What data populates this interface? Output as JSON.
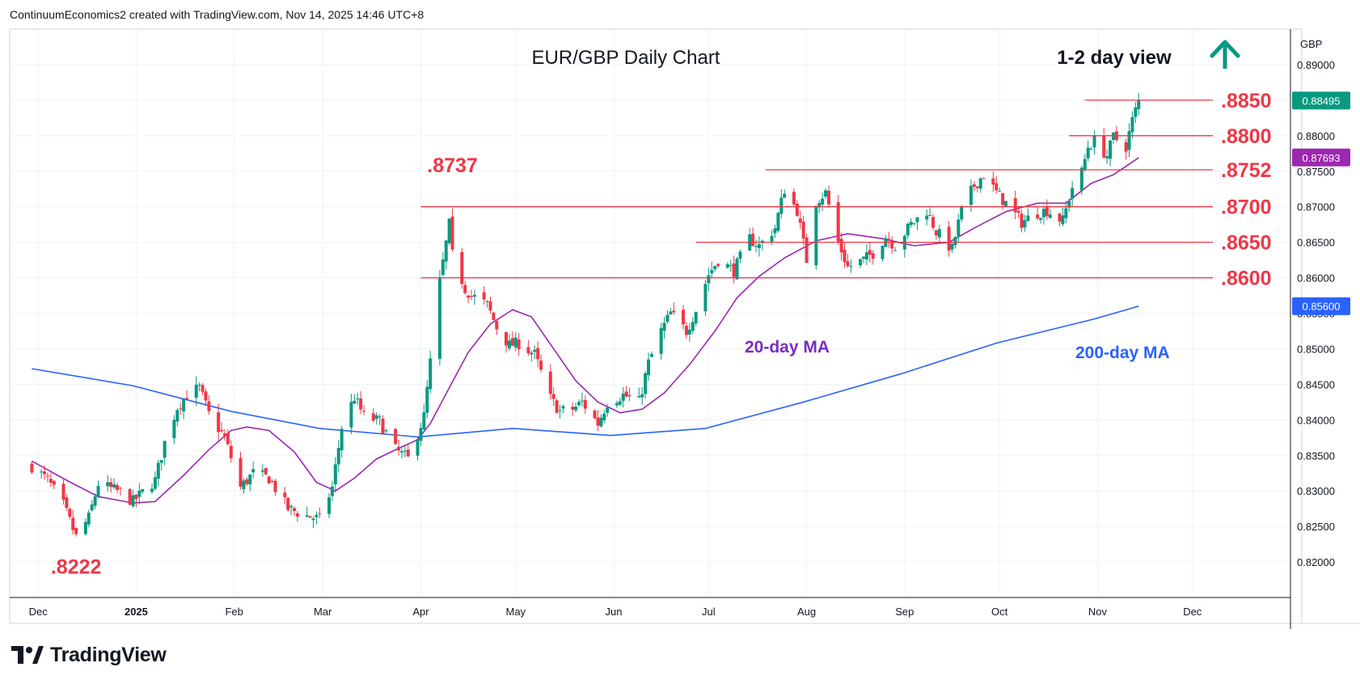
{
  "attribution": "ContinuumEconomics2 created with TradingView.com, Nov 14, 2025 14:46 UTC+8",
  "brand": "TradingView",
  "chart_data": {
    "type": "candlestick",
    "title": "EUR/GBP Daily Chart",
    "view_label": "1-2 day view",
    "view_direction": "up",
    "currency": "GBP",
    "ylim": [
      0.815,
      0.895
    ],
    "y_ticks": [
      "0.89000",
      "0.88500",
      "0.88000",
      "0.87500",
      "0.87000",
      "0.86500",
      "0.86000",
      "0.85500",
      "0.85000",
      "0.84500",
      "0.84000",
      "0.83500",
      "0.83000",
      "0.82500",
      "0.82000"
    ],
    "y_tick_values": [
      0.89,
      0.885,
      0.88,
      0.875,
      0.87,
      0.865,
      0.86,
      0.855,
      0.85,
      0.845,
      0.84,
      0.835,
      0.83,
      0.825,
      0.82
    ],
    "x_ticks": [
      {
        "label": "Dec",
        "date": "2024-12-01",
        "bold": false
      },
      {
        "label": "2025",
        "date": "2025-01-01",
        "bold": true
      },
      {
        "label": "Feb",
        "date": "2025-02-01",
        "bold": false
      },
      {
        "label": "Mar",
        "date": "2025-03-01",
        "bold": false
      },
      {
        "label": "Apr",
        "date": "2025-04-01",
        "bold": false
      },
      {
        "label": "May",
        "date": "2025-05-01",
        "bold": false
      },
      {
        "label": "Jun",
        "date": "2025-06-01",
        "bold": false
      },
      {
        "label": "Jul",
        "date": "2025-07-01",
        "bold": false
      },
      {
        "label": "Aug",
        "date": "2025-08-01",
        "bold": false
      },
      {
        "label": "Sep",
        "date": "2025-09-01",
        "bold": false
      },
      {
        "label": "Oct",
        "date": "2025-10-01",
        "bold": false
      },
      {
        "label": "Nov",
        "date": "2025-11-01",
        "bold": false
      },
      {
        "label": "Dec",
        "date": "2025-12-01",
        "bold": false
      }
    ],
    "price_badges": [
      {
        "label": "0.88495",
        "value": 0.88495,
        "color": "#089981"
      },
      {
        "label": "0.87693",
        "value": 0.87693,
        "color": "#9c27b0"
      },
      {
        "label": "0.85600",
        "value": 0.856,
        "color": "#2962ff"
      }
    ],
    "levels": [
      {
        "label": ".8850",
        "value": 0.885,
        "from": "2025-10-28"
      },
      {
        "label": ".8800",
        "value": 0.88,
        "from": "2025-10-23"
      },
      {
        "label": ".8752",
        "value": 0.8752,
        "from": "2025-07-19"
      },
      {
        "label": ".8700",
        "value": 0.87,
        "from": "2025-04-01"
      },
      {
        "label": ".8650",
        "value": 0.865,
        "from": "2025-06-27"
      },
      {
        "label": ".8600",
        "value": 0.86,
        "from": "2025-04-01"
      }
    ],
    "annotations": [
      {
        "label": ".8737",
        "date": "2025-04-11",
        "value": 0.8737,
        "place": "above"
      },
      {
        "label": ".8222",
        "date": "2024-12-13",
        "value": 0.8222,
        "place": "below"
      }
    ],
    "ma_labels": [
      {
        "label": "20-day MA",
        "color": "#7b2cbf"
      },
      {
        "label": "200-day MA",
        "color": "#2962ff"
      }
    ],
    "colors": {
      "up": "#089981",
      "down": "#f23645",
      "level": "#f23645",
      "ma20": "#9c27b0",
      "ma200": "#2962ff",
      "grid": "#f0f3fa",
      "text": "#131722"
    },
    "ma20": [
      [
        "2024-11-29",
        0.8342
      ],
      [
        "2024-12-10",
        0.8315
      ],
      [
        "2024-12-20",
        0.8292
      ],
      [
        "2024-12-31",
        0.8283
      ],
      [
        "2025-01-07",
        0.8285
      ],
      [
        "2025-01-16",
        0.8322
      ],
      [
        "2025-01-24",
        0.8358
      ],
      [
        "2025-01-31",
        0.8385
      ],
      [
        "2025-02-05",
        0.839
      ],
      [
        "2025-02-12",
        0.8385
      ],
      [
        "2025-02-20",
        0.8355
      ],
      [
        "2025-02-27",
        0.8312
      ],
      [
        "2025-03-05",
        0.83
      ],
      [
        "2025-03-11",
        0.8318
      ],
      [
        "2025-03-18",
        0.8345
      ],
      [
        "2025-03-25",
        0.836
      ],
      [
        "2025-03-31",
        0.8372
      ],
      [
        "2025-04-04",
        0.8395
      ],
      [
        "2025-04-10",
        0.8445
      ],
      [
        "2025-04-16",
        0.8495
      ],
      [
        "2025-04-23",
        0.8535
      ],
      [
        "2025-04-30",
        0.8555
      ],
      [
        "2025-05-06",
        0.8545
      ],
      [
        "2025-05-13",
        0.85
      ],
      [
        "2025-05-20",
        0.8455
      ],
      [
        "2025-05-27",
        0.8425
      ],
      [
        "2025-06-03",
        0.841
      ],
      [
        "2025-06-10",
        0.8415
      ],
      [
        "2025-06-17",
        0.8438
      ],
      [
        "2025-06-25",
        0.8478
      ],
      [
        "2025-07-03",
        0.8525
      ],
      [
        "2025-07-10",
        0.8572
      ],
      [
        "2025-07-17",
        0.8602
      ],
      [
        "2025-07-25",
        0.8628
      ],
      [
        "2025-08-04",
        0.8652
      ],
      [
        "2025-08-14",
        0.8662
      ],
      [
        "2025-08-25",
        0.8655
      ],
      [
        "2025-09-04",
        0.8645
      ],
      [
        "2025-09-15",
        0.865
      ],
      [
        "2025-09-23",
        0.867
      ],
      [
        "2025-10-03",
        0.8693
      ],
      [
        "2025-10-13",
        0.8705
      ],
      [
        "2025-10-22",
        0.8705
      ],
      [
        "2025-10-30",
        0.8733
      ],
      [
        "2025-11-06",
        0.8745
      ],
      [
        "2025-11-14",
        0.8769
      ]
    ],
    "ma200": [
      [
        "2024-11-29",
        0.8472
      ],
      [
        "2024-12-31",
        0.8448
      ],
      [
        "2025-01-31",
        0.8412
      ],
      [
        "2025-02-28",
        0.8388
      ],
      [
        "2025-03-31",
        0.8376
      ],
      [
        "2025-04-30",
        0.8388
      ],
      [
        "2025-05-31",
        0.8378
      ],
      [
        "2025-06-30",
        0.8388
      ],
      [
        "2025-07-31",
        0.8425
      ],
      [
        "2025-08-31",
        0.8465
      ],
      [
        "2025-09-30",
        0.8508
      ],
      [
        "2025-10-31",
        0.8542
      ],
      [
        "2025-11-14",
        0.856
      ]
    ],
    "closes": [
      [
        "2024-11-29",
        0.8335
      ],
      [
        "2024-12-04",
        0.8315
      ],
      [
        "2024-12-09",
        0.828
      ],
      [
        "2024-12-13",
        0.8235
      ],
      [
        "2024-12-17",
        0.8262
      ],
      [
        "2024-12-20",
        0.831
      ],
      [
        "2024-12-27",
        0.8298
      ],
      [
        "2024-12-31",
        0.8285
      ],
      [
        "2025-01-07",
        0.8315
      ],
      [
        "2025-01-10",
        0.8368
      ],
      [
        "2025-01-14",
        0.8418
      ],
      [
        "2025-01-17",
        0.8435
      ],
      [
        "2025-01-21",
        0.8445
      ],
      [
        "2025-01-24",
        0.8408
      ],
      [
        "2025-01-29",
        0.8375
      ],
      [
        "2025-02-03",
        0.8305
      ],
      [
        "2025-02-07",
        0.8325
      ],
      [
        "2025-02-12",
        0.8318
      ],
      [
        "2025-02-18",
        0.8275
      ],
      [
        "2025-02-24",
        0.8265
      ],
      [
        "2025-02-28",
        0.826
      ],
      [
        "2025-03-04",
        0.8305
      ],
      [
        "2025-03-07",
        0.839
      ],
      [
        "2025-03-11",
        0.8432
      ],
      [
        "2025-03-14",
        0.8405
      ],
      [
        "2025-03-19",
        0.8398
      ],
      [
        "2025-03-24",
        0.8358
      ],
      [
        "2025-03-28",
        0.8345
      ],
      [
        "2025-04-02",
        0.8405
      ],
      [
        "2025-04-07",
        0.8595
      ],
      [
        "2025-04-10",
        0.8675
      ],
      [
        "2025-04-11",
        0.8632
      ],
      [
        "2025-04-15",
        0.8585
      ],
      [
        "2025-04-17",
        0.8575
      ],
      [
        "2025-04-22",
        0.8562
      ],
      [
        "2025-04-25",
        0.853
      ],
      [
        "2025-04-29",
        0.8505
      ],
      [
        "2025-05-02",
        0.8508
      ],
      [
        "2025-05-07",
        0.8492
      ],
      [
        "2025-05-12",
        0.843
      ],
      [
        "2025-05-15",
        0.8412
      ],
      [
        "2025-05-19",
        0.8415
      ],
      [
        "2025-05-22",
        0.8425
      ],
      [
        "2025-05-27",
        0.8395
      ],
      [
        "2025-05-30",
        0.8425
      ],
      [
        "2025-06-04",
        0.8435
      ],
      [
        "2025-06-09",
        0.8425
      ],
      [
        "2025-06-12",
        0.848
      ],
      [
        "2025-06-16",
        0.8525
      ],
      [
        "2025-06-19",
        0.855
      ],
      [
        "2025-06-24",
        0.8525
      ],
      [
        "2025-06-27",
        0.8555
      ],
      [
        "2025-07-01",
        0.8605
      ],
      [
        "2025-07-04",
        0.8625
      ],
      [
        "2025-07-09",
        0.861
      ],
      [
        "2025-07-14",
        0.8655
      ],
      [
        "2025-07-17",
        0.8645
      ],
      [
        "2025-07-22",
        0.867
      ],
      [
        "2025-07-25",
        0.8725
      ],
      [
        "2025-07-29",
        0.8695
      ],
      [
        "2025-08-01",
        0.8625
      ],
      [
        "2025-08-04",
        0.8708
      ],
      [
        "2025-08-07",
        0.872
      ],
      [
        "2025-08-11",
        0.865
      ],
      [
        "2025-08-14",
        0.8615
      ],
      [
        "2025-08-19",
        0.8625
      ],
      [
        "2025-08-22",
        0.8635
      ],
      [
        "2025-08-26",
        0.8658
      ],
      [
        "2025-08-29",
        0.8645
      ],
      [
        "2025-09-03",
        0.8675
      ],
      [
        "2025-09-08",
        0.8695
      ],
      [
        "2025-09-11",
        0.8665
      ],
      [
        "2025-09-16",
        0.864
      ],
      [
        "2025-09-19",
        0.8695
      ],
      [
        "2025-09-23",
        0.873
      ],
      [
        "2025-09-26",
        0.8745
      ],
      [
        "2025-09-30",
        0.872
      ],
      [
        "2025-10-03",
        0.8705
      ],
      [
        "2025-10-08",
        0.8678
      ],
      [
        "2025-10-13",
        0.8692
      ],
      [
        "2025-10-16",
        0.8695
      ],
      [
        "2025-10-21",
        0.868
      ],
      [
        "2025-10-24",
        0.8728
      ],
      [
        "2025-10-27",
        0.8748
      ],
      [
        "2025-10-29",
        0.8785
      ],
      [
        "2025-10-31",
        0.8792
      ],
      [
        "2025-11-04",
        0.8772
      ],
      [
        "2025-11-06",
        0.8798
      ],
      [
        "2025-11-10",
        0.8785
      ],
      [
        "2025-11-12",
        0.8822
      ],
      [
        "2025-11-14",
        0.88495
      ]
    ]
  }
}
